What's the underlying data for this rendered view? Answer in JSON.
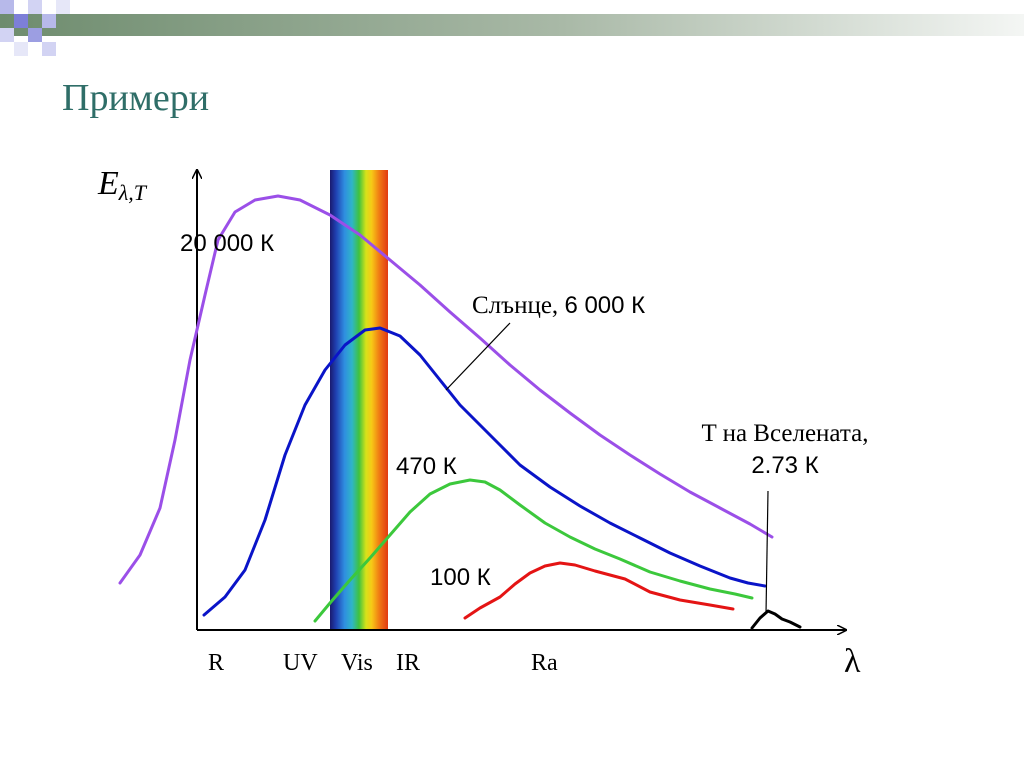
{
  "slide": {
    "title": "Примери"
  },
  "chart_data": {
    "type": "line",
    "title": "",
    "ylabel": {
      "main": "E",
      "subscript": "λ,T"
    },
    "xlabel": "λ",
    "x_region_labels": [
      "R",
      "UV",
      "Vis",
      "IR",
      "Ra"
    ],
    "spectrum_band": "Vis",
    "series": [
      {
        "name": "20 000 К",
        "color": "#9b4fe8"
      },
      {
        "name": "Слънце, 6 000 К",
        "color": "#0a14c8"
      },
      {
        "name": "470 К",
        "color": "#3cc83c"
      },
      {
        "name": "100 К",
        "color": "#e41414"
      },
      {
        "name": "T на Вселената, 2.73 К",
        "color": "#000000"
      }
    ],
    "annotations": {
      "t20000": "20 000 К",
      "sun_part1": "Слънце, ",
      "sun_part2": "6 000 К",
      "t470": "470 К",
      "t100": "100 К",
      "universe_line1": "T на Вселената,",
      "universe_line2": "2.73 К"
    },
    "axes": {
      "y_arrow": true,
      "x_arrow": true,
      "grid": false
    }
  }
}
